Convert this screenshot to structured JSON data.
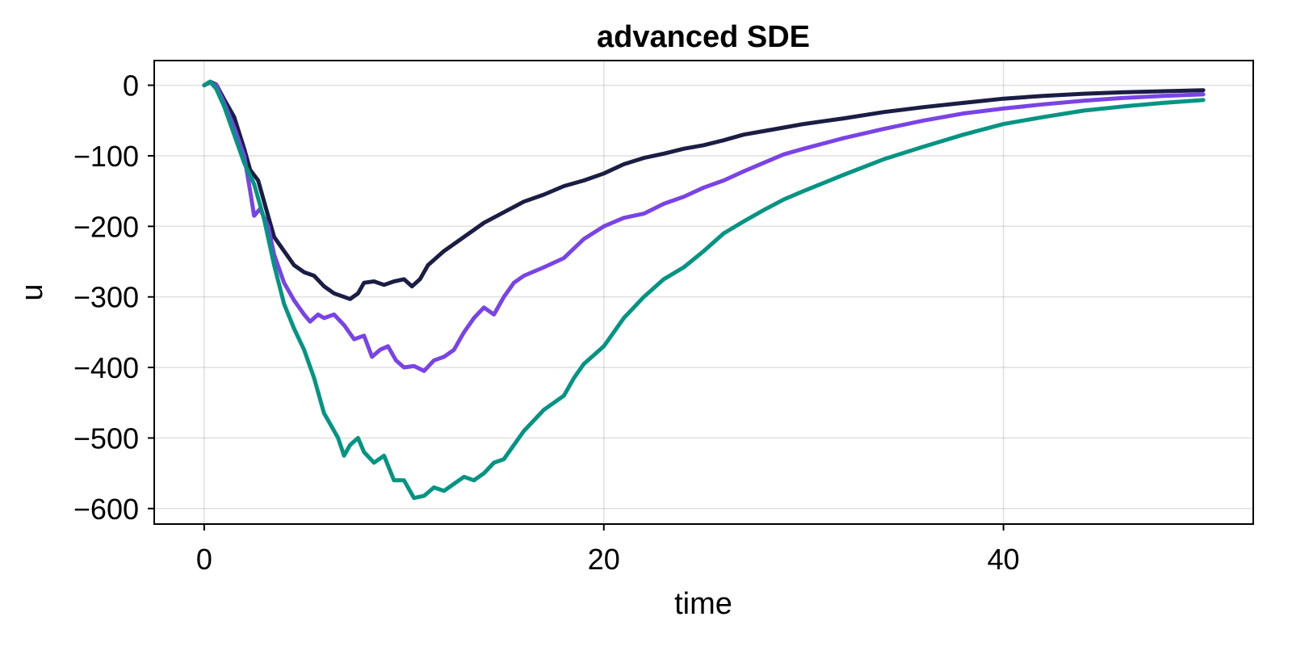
{
  "chart_data": {
    "type": "line",
    "title": "advanced SDE",
    "xlabel": "time",
    "ylabel": "u",
    "xlim": [
      -2.5,
      52.5
    ],
    "ylim": [
      -622,
      35
    ],
    "xticks": [
      0,
      20,
      40
    ],
    "xtick_labels": [
      "0",
      "20",
      "40"
    ],
    "yticks": [
      0,
      -100,
      -200,
      -300,
      -400,
      -500,
      -600
    ],
    "ytick_labels": [
      "0",
      "−100",
      "−200",
      "−300",
      "−400",
      "−500",
      "−600"
    ],
    "grid": true,
    "legend": "none",
    "series": [
      {
        "color": "#1b1d45",
        "points": [
          [
            0,
            0
          ],
          [
            0.3,
            5
          ],
          [
            0.6,
            1
          ],
          [
            1,
            -20
          ],
          [
            1.5,
            -45
          ],
          [
            2,
            -90
          ],
          [
            2.3,
            -120
          ],
          [
            2.7,
            -135
          ],
          [
            3.2,
            -185
          ],
          [
            3.5,
            -215
          ],
          [
            4,
            -235
          ],
          [
            4.5,
            -255
          ],
          [
            5,
            -265
          ],
          [
            5.5,
            -270
          ],
          [
            6,
            -285
          ],
          [
            6.5,
            -295
          ],
          [
            7,
            -300
          ],
          [
            7.3,
            -303
          ],
          [
            7.7,
            -295
          ],
          [
            8,
            -280
          ],
          [
            8.5,
            -278
          ],
          [
            9,
            -283
          ],
          [
            9.5,
            -278
          ],
          [
            10,
            -275
          ],
          [
            10.4,
            -285
          ],
          [
            10.8,
            -275
          ],
          [
            11.2,
            -255
          ],
          [
            12,
            -235
          ],
          [
            13,
            -215
          ],
          [
            14,
            -195
          ],
          [
            15,
            -180
          ],
          [
            16,
            -165
          ],
          [
            17,
            -155
          ],
          [
            18,
            -143
          ],
          [
            19,
            -135
          ],
          [
            20,
            -125
          ],
          [
            21,
            -112
          ],
          [
            22,
            -103
          ],
          [
            23,
            -97
          ],
          [
            24,
            -90
          ],
          [
            25,
            -85
          ],
          [
            26,
            -78
          ],
          [
            27,
            -70
          ],
          [
            28,
            -65
          ],
          [
            29,
            -60
          ],
          [
            30,
            -55
          ],
          [
            32,
            -47
          ],
          [
            34,
            -38
          ],
          [
            36,
            -31
          ],
          [
            38,
            -25
          ],
          [
            40,
            -19
          ],
          [
            42,
            -15
          ],
          [
            44,
            -12
          ],
          [
            46,
            -10
          ],
          [
            48,
            -8.5
          ],
          [
            50,
            -7
          ]
        ]
      },
      {
        "color": "#7943e5",
        "points": [
          [
            0,
            0
          ],
          [
            0.3,
            4
          ],
          [
            0.6,
            0
          ],
          [
            1,
            -25
          ],
          [
            1.5,
            -60
          ],
          [
            2,
            -100
          ],
          [
            2.3,
            -150
          ],
          [
            2.5,
            -185
          ],
          [
            2.8,
            -175
          ],
          [
            3.2,
            -200
          ],
          [
            3.5,
            -240
          ],
          [
            4,
            -280
          ],
          [
            4.5,
            -305
          ],
          [
            5,
            -325
          ],
          [
            5.3,
            -335
          ],
          [
            5.7,
            -325
          ],
          [
            6,
            -330
          ],
          [
            6.5,
            -325
          ],
          [
            7,
            -340
          ],
          [
            7.5,
            -360
          ],
          [
            8,
            -355
          ],
          [
            8.4,
            -385
          ],
          [
            8.8,
            -375
          ],
          [
            9.2,
            -370
          ],
          [
            9.6,
            -390
          ],
          [
            10,
            -400
          ],
          [
            10.5,
            -398
          ],
          [
            11,
            -405
          ],
          [
            11.5,
            -390
          ],
          [
            12,
            -385
          ],
          [
            12.5,
            -375
          ],
          [
            13,
            -350
          ],
          [
            13.5,
            -330
          ],
          [
            14,
            -315
          ],
          [
            14.5,
            -325
          ],
          [
            15,
            -300
          ],
          [
            15.5,
            -280
          ],
          [
            16,
            -270
          ],
          [
            17,
            -258
          ],
          [
            18,
            -245
          ],
          [
            19,
            -218
          ],
          [
            20,
            -200
          ],
          [
            21,
            -188
          ],
          [
            22,
            -182
          ],
          [
            23,
            -168
          ],
          [
            24,
            -158
          ],
          [
            25,
            -145
          ],
          [
            26,
            -135
          ],
          [
            27,
            -122
          ],
          [
            28,
            -110
          ],
          [
            29,
            -98
          ],
          [
            30,
            -90
          ],
          [
            32,
            -75
          ],
          [
            34,
            -62
          ],
          [
            36,
            -50
          ],
          [
            38,
            -40
          ],
          [
            40,
            -33
          ],
          [
            42,
            -27
          ],
          [
            44,
            -22
          ],
          [
            46,
            -18
          ],
          [
            48,
            -15
          ],
          [
            50,
            -13
          ]
        ]
      },
      {
        "color": "#039483",
        "points": [
          [
            0,
            0
          ],
          [
            0.3,
            5
          ],
          [
            0.6,
            -5
          ],
          [
            1,
            -30
          ],
          [
            1.5,
            -70
          ],
          [
            2,
            -110
          ],
          [
            2.5,
            -140
          ],
          [
            3,
            -190
          ],
          [
            3.5,
            -255
          ],
          [
            4,
            -310
          ],
          [
            4.5,
            -345
          ],
          [
            5,
            -375
          ],
          [
            5.5,
            -415
          ],
          [
            6,
            -465
          ],
          [
            6.3,
            -480
          ],
          [
            6.7,
            -500
          ],
          [
            7,
            -525
          ],
          [
            7.3,
            -510
          ],
          [
            7.7,
            -500
          ],
          [
            8,
            -520
          ],
          [
            8.5,
            -535
          ],
          [
            9,
            -525
          ],
          [
            9.5,
            -560
          ],
          [
            10,
            -560
          ],
          [
            10.5,
            -585
          ],
          [
            11,
            -582
          ],
          [
            11.5,
            -570
          ],
          [
            12,
            -575
          ],
          [
            12.5,
            -565
          ],
          [
            13,
            -555
          ],
          [
            13.5,
            -560
          ],
          [
            14,
            -550
          ],
          [
            14.5,
            -535
          ],
          [
            15,
            -530
          ],
          [
            15.5,
            -510
          ],
          [
            16,
            -490
          ],
          [
            16.5,
            -475
          ],
          [
            17,
            -460
          ],
          [
            18,
            -440
          ],
          [
            18.5,
            -415
          ],
          [
            19,
            -395
          ],
          [
            20,
            -370
          ],
          [
            21,
            -330
          ],
          [
            22,
            -300
          ],
          [
            23,
            -275
          ],
          [
            24,
            -258
          ],
          [
            25,
            -235
          ],
          [
            26,
            -210
          ],
          [
            27,
            -193
          ],
          [
            28,
            -177
          ],
          [
            29,
            -162
          ],
          [
            30,
            -150
          ],
          [
            32,
            -127
          ],
          [
            34,
            -105
          ],
          [
            36,
            -87
          ],
          [
            38,
            -70
          ],
          [
            40,
            -55
          ],
          [
            42,
            -45
          ],
          [
            44,
            -36
          ],
          [
            46,
            -30
          ],
          [
            48,
            -25
          ],
          [
            50,
            -21
          ]
        ]
      }
    ]
  }
}
